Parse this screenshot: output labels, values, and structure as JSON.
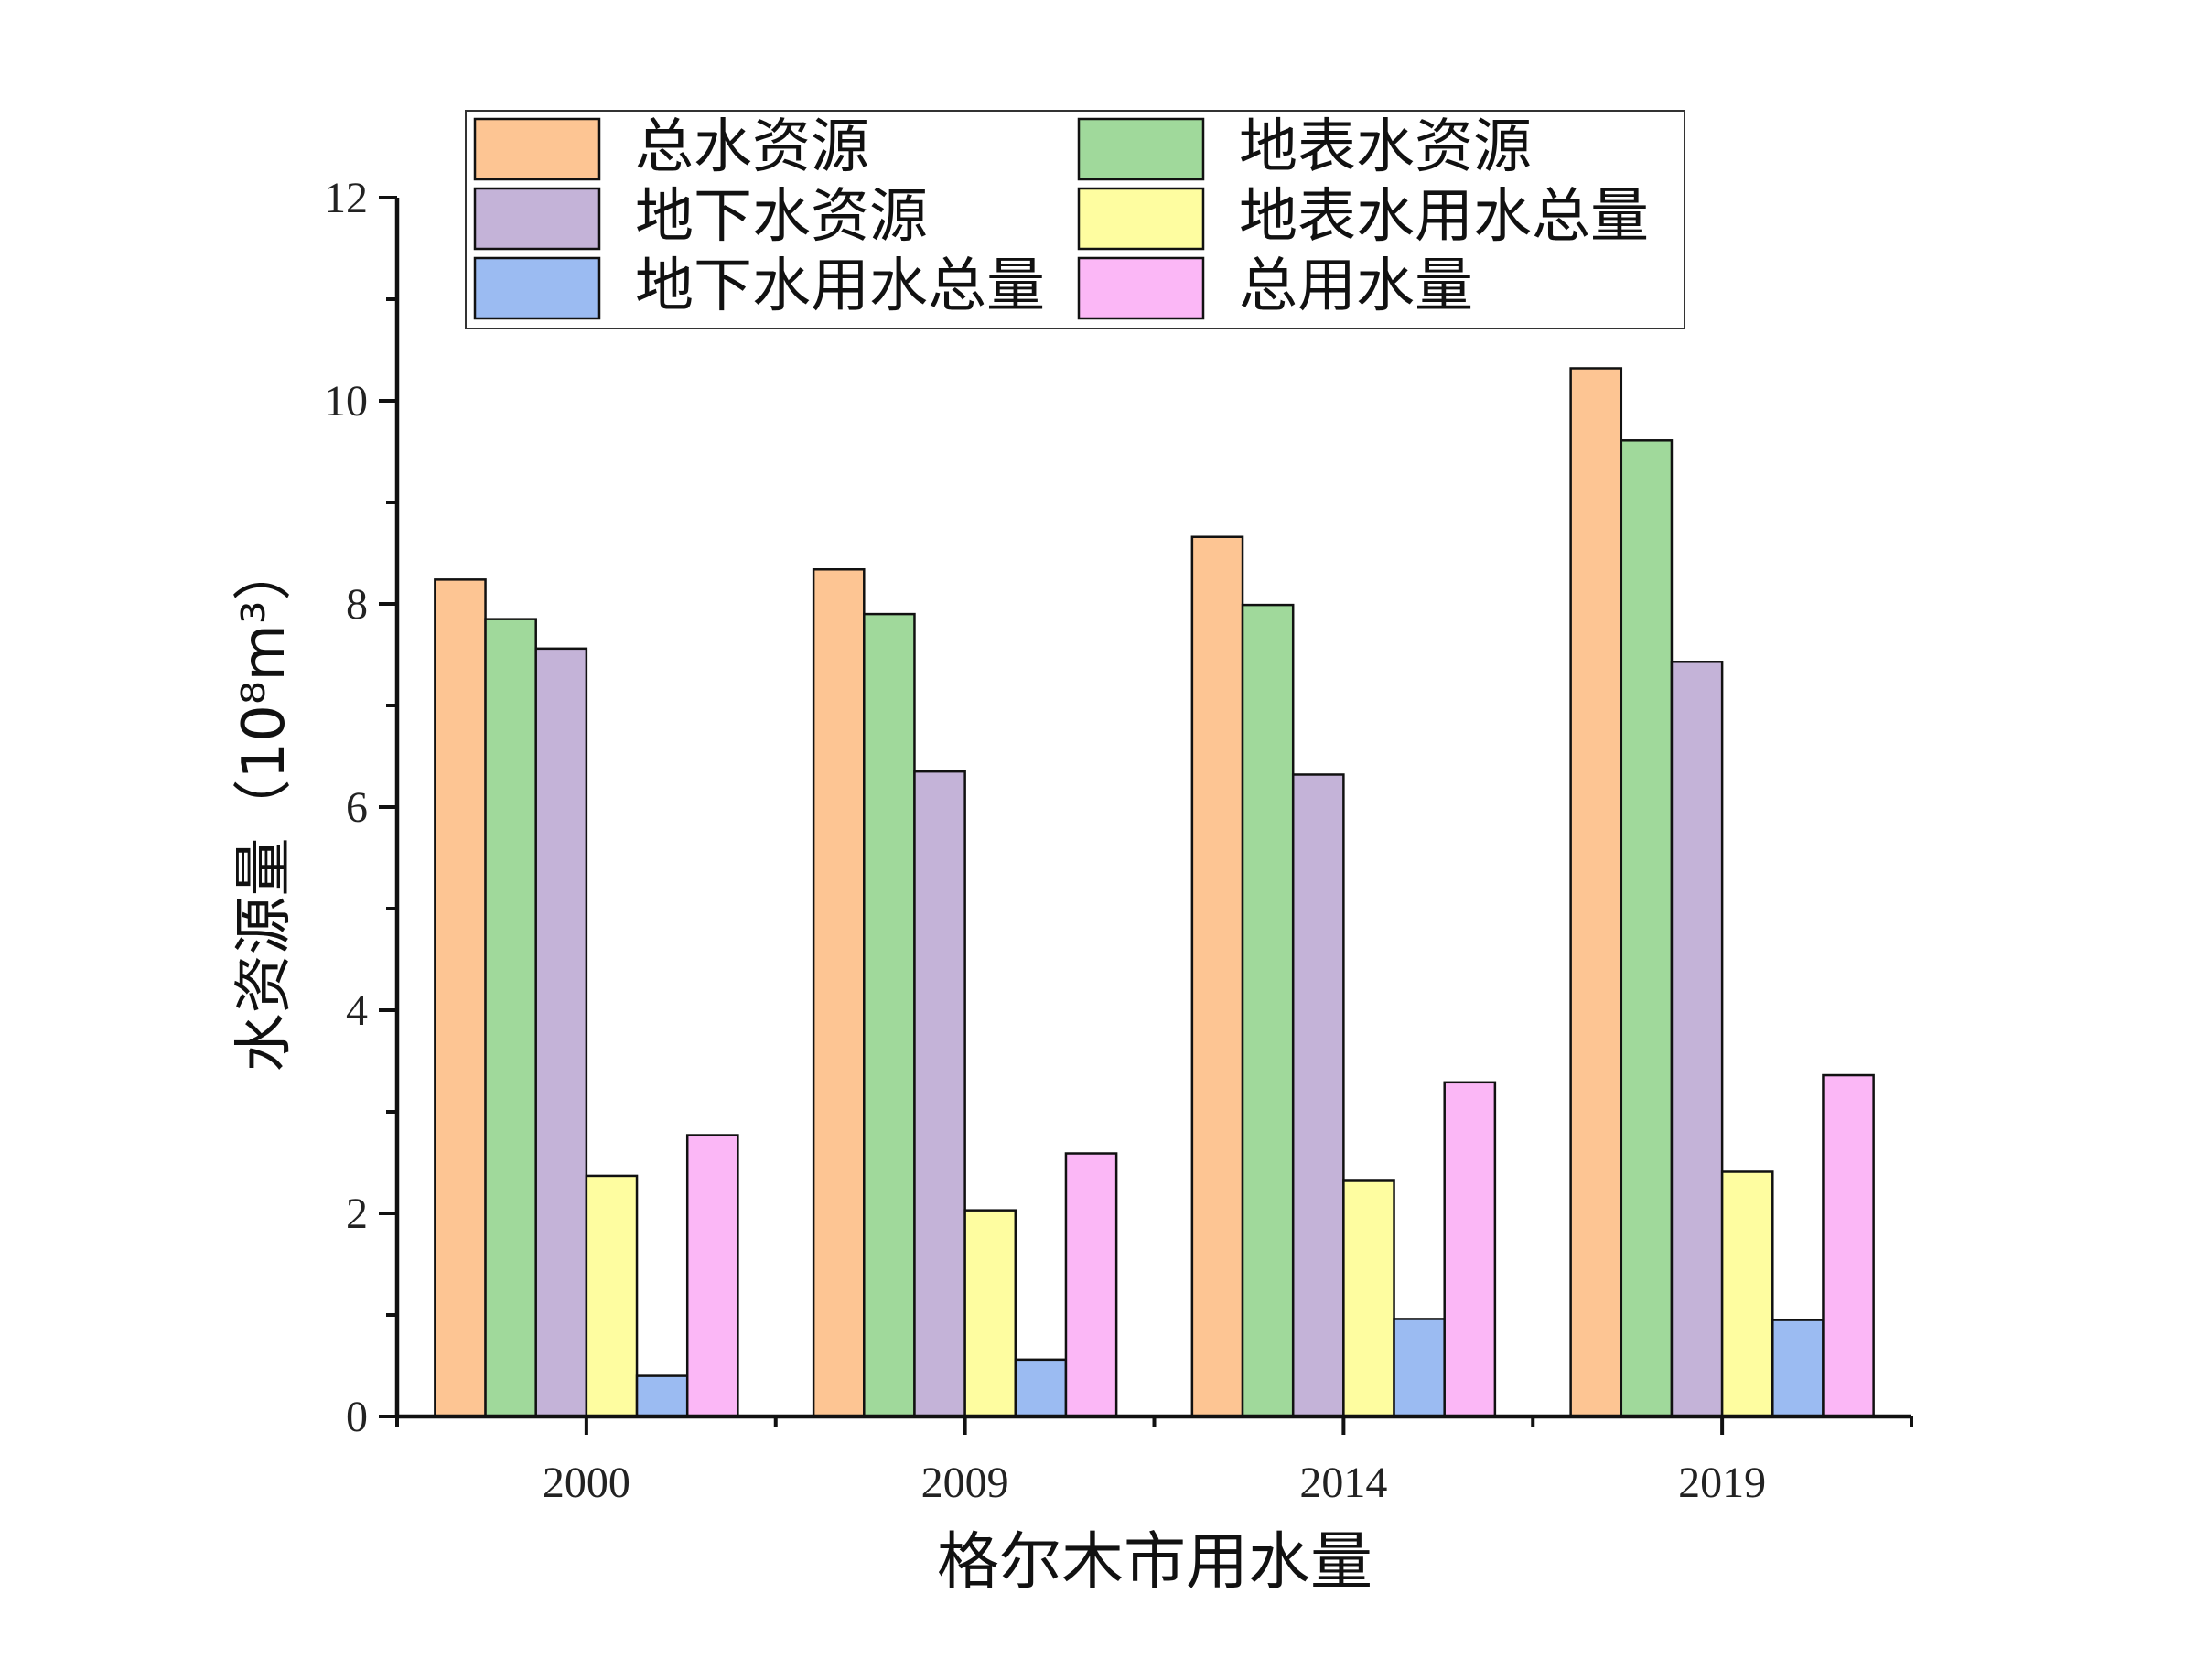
{
  "chart_data": {
    "type": "bar",
    "xlabel": "格尔木市用水量",
    "ylabel": "水资源量（10⁸m³）",
    "categories": [
      "2000",
      "2009",
      "2014",
      "2019"
    ],
    "ylim": [
      0,
      12
    ],
    "yticks": [
      "0",
      "2",
      "4",
      "6",
      "8",
      "10",
      "12"
    ],
    "grid": false,
    "legend_position": "top",
    "series": [
      {
        "name": "总水资源",
        "color": "#FDC593",
        "values": [
          8.24,
          8.34,
          8.66,
          10.32
        ]
      },
      {
        "name": "地表水资源",
        "color": "#A0D99B",
        "values": [
          7.85,
          7.9,
          7.99,
          9.61
        ]
      },
      {
        "name": "地下水资源",
        "color": "#C4B3D8",
        "values": [
          7.56,
          6.35,
          6.32,
          7.43
        ]
      },
      {
        "name": "地表水用水总量",
        "color": "#FEFDA0",
        "values": [
          2.37,
          2.03,
          2.32,
          2.41
        ]
      },
      {
        "name": "地下水用水总量",
        "color": "#9BBBF2",
        "values": [
          0.4,
          0.56,
          0.96,
          0.95
        ]
      },
      {
        "name": "总用水量",
        "color": "#FBB7F6",
        "values": [
          2.77,
          2.59,
          3.29,
          3.36
        ]
      }
    ]
  }
}
